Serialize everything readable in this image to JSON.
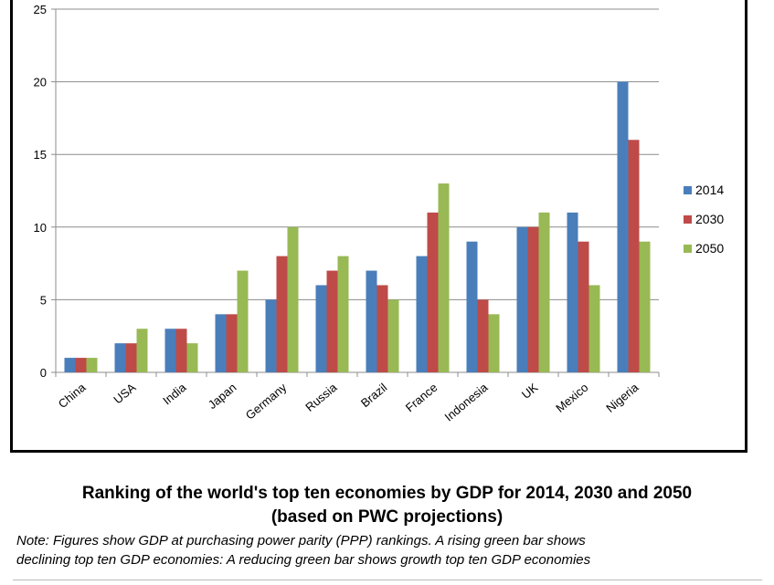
{
  "colors": {
    "s2014": "#4a7ebb",
    "s2030": "#be4b48",
    "s2050": "#98b954",
    "grid": "#8c8c8c",
    "axis": "#8c8c8c"
  },
  "chart_data": {
    "type": "bar",
    "categories": [
      "China",
      "USA",
      "India",
      "Japan",
      "Germany",
      "Russia",
      "Brazil",
      "France",
      "Indonesia",
      "UK",
      "Mexico",
      "Nigeria"
    ],
    "series": [
      {
        "name": "2014",
        "values": [
          1,
          2,
          3,
          4,
          5,
          6,
          7,
          8,
          9,
          10,
          11,
          20
        ]
      },
      {
        "name": "2030",
        "values": [
          1,
          2,
          3,
          4,
          8,
          7,
          6,
          11,
          5,
          10,
          9,
          16
        ]
      },
      {
        "name": "2050",
        "values": [
          1,
          3,
          2,
          7,
          10,
          8,
          5,
          13,
          4,
          11,
          6,
          9
        ]
      }
    ],
    "yticks": [
      0,
      5,
      10,
      15,
      20,
      25
    ],
    "ylim": [
      0,
      25
    ],
    "grid": true,
    "legend_position": "right",
    "title": "",
    "xlabel": "",
    "ylabel": ""
  },
  "caption": {
    "title_line1": "Ranking of the world's top ten economies by GDP for 2014, 2030 and 2050",
    "title_line2": "(based on PWC projections)",
    "note_line1": "Note: Figures show GDP at purchasing power parity (PPP) rankings. A rising green bar shows",
    "note_line2": "declining top ten GDP economies: A reducing green bar shows growth top ten GDP economies"
  }
}
